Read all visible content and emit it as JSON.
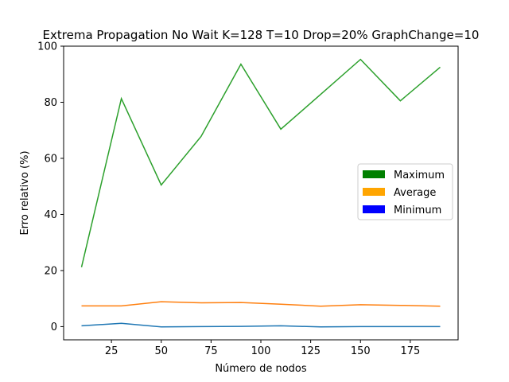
{
  "chart_data": {
    "type": "line",
    "title": "Extrema Propagation No Wait K=128 T=10 Drop=20% GraphChange=10",
    "xlabel": "Número de nodos",
    "ylabel": "Erro relativo (%)",
    "xlim": [
      1,
      199
    ],
    "ylim": [
      -4.7,
      100
    ],
    "xticks": [
      25,
      50,
      75,
      100,
      125,
      150,
      175
    ],
    "yticks": [
      0,
      20,
      40,
      60,
      80,
      100
    ],
    "grid": false,
    "legend_position": "center-right",
    "x": [
      10,
      30,
      50,
      70,
      90,
      110,
      130,
      150,
      170,
      190
    ],
    "series": [
      {
        "color": "#1f77b4",
        "values": [
          0.3,
          1.2,
          -0.1,
          0.0,
          0.1,
          0.3,
          -0.1,
          0.0,
          0.0,
          0.0
        ]
      },
      {
        "color": "#ff7f0e",
        "values": [
          7.4,
          7.4,
          8.9,
          8.5,
          8.6,
          8.0,
          7.3,
          7.8,
          7.6,
          7.3
        ]
      },
      {
        "color": "#2ca02c",
        "values": [
          21.2,
          81.3,
          50.5,
          67.8,
          93.6,
          70.4,
          82.8,
          95.3,
          80.5,
          92.5
        ]
      }
    ],
    "legend": [
      {
        "name": "Maximum",
        "color": "#008000"
      },
      {
        "name": "Average",
        "color": "#ffa500"
      },
      {
        "name": "Minimum",
        "color": "#0000ff"
      }
    ]
  }
}
